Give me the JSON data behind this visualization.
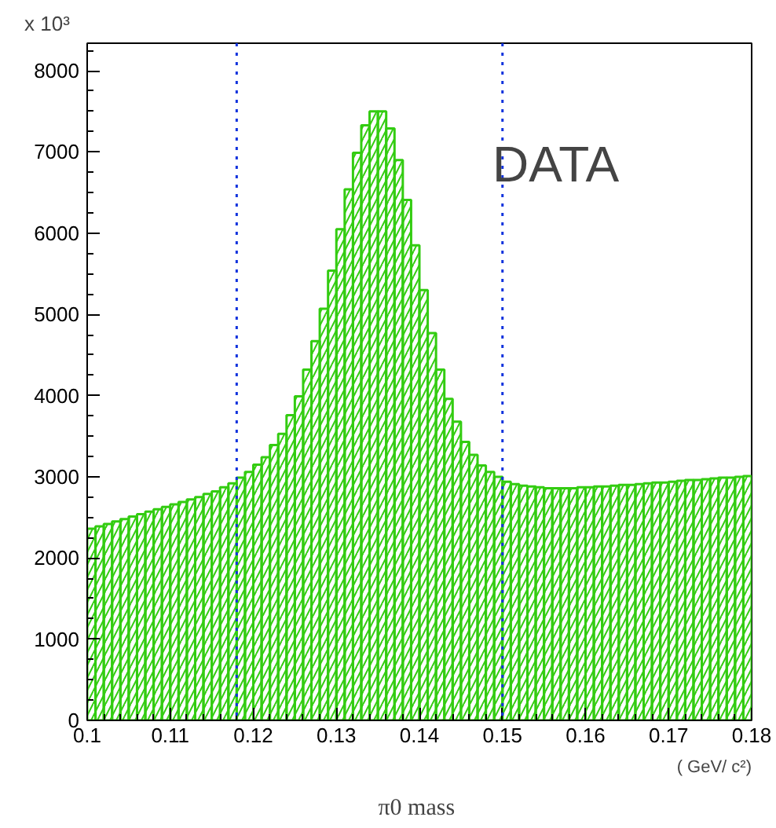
{
  "chart_data": {
    "type": "histogram",
    "bins": [
      0.1,
      0.101,
      0.102,
      0.103,
      0.104,
      0.105,
      0.106,
      0.107,
      0.108,
      0.109,
      0.11,
      0.111,
      0.112,
      0.113,
      0.114,
      0.115,
      0.116,
      0.117,
      0.118,
      0.119,
      0.12,
      0.121,
      0.122,
      0.123,
      0.124,
      0.125,
      0.126,
      0.127,
      0.128,
      0.129,
      0.13,
      0.131,
      0.132,
      0.133,
      0.134,
      0.135,
      0.136,
      0.137,
      0.138,
      0.139,
      0.14,
      0.141,
      0.142,
      0.143,
      0.144,
      0.145,
      0.146,
      0.147,
      0.148,
      0.149,
      0.15,
      0.151,
      0.152,
      0.153,
      0.154,
      0.155,
      0.156,
      0.157,
      0.158,
      0.159,
      0.16,
      0.161,
      0.162,
      0.163,
      0.164,
      0.165,
      0.166,
      0.167,
      0.168,
      0.169,
      0.17,
      0.171,
      0.172,
      0.173,
      0.174,
      0.175,
      0.176,
      0.177,
      0.178,
      0.179,
      0.18
    ],
    "values": [
      2360,
      2390,
      2420,
      2450,
      2480,
      2510,
      2540,
      2570,
      2600,
      2630,
      2660,
      2690,
      2720,
      2750,
      2790,
      2820,
      2870,
      2920,
      2990,
      3060,
      3150,
      3240,
      3390,
      3530,
      3760,
      3990,
      4320,
      4670,
      5070,
      5540,
      6050,
      6540,
      6990,
      7330,
      7500,
      7500,
      7290,
      6900,
      6410,
      5850,
      5300,
      4770,
      4320,
      3960,
      3680,
      3430,
      3270,
      3140,
      3060,
      3000,
      2940,
      2910,
      2890,
      2880,
      2870,
      2860,
      2860,
      2860,
      2860,
      2870,
      2870,
      2880,
      2880,
      2890,
      2900,
      2900,
      2910,
      2920,
      2930,
      2930,
      2940,
      2950,
      2960,
      2960,
      2970,
      2980,
      2990,
      2990,
      3000,
      3010
    ],
    "color": "#33cc11",
    "xlabel": "π0  mass",
    "ylabel": "x 10³",
    "xlim": [
      0.1,
      0.18
    ],
    "ylim": [
      0,
      8340
    ],
    "xticks": [
      0.1,
      0.11,
      0.12,
      0.13,
      0.14,
      0.15,
      0.16,
      0.17,
      0.18
    ],
    "yticks": [
      0,
      1000,
      2000,
      3000,
      4000,
      5000,
      6000,
      7000,
      8000
    ],
    "ref_lines": [
      {
        "axis": "x",
        "value": 0.118,
        "color": "#1133dd",
        "line_style": "dotted"
      },
      {
        "axis": "x",
        "value": 0.15,
        "color": "#1133dd",
        "line_style": "dotted"
      }
    ],
    "annotations": [
      "DATA",
      "( GeV/ c²)"
    ],
    "grid": false
  }
}
